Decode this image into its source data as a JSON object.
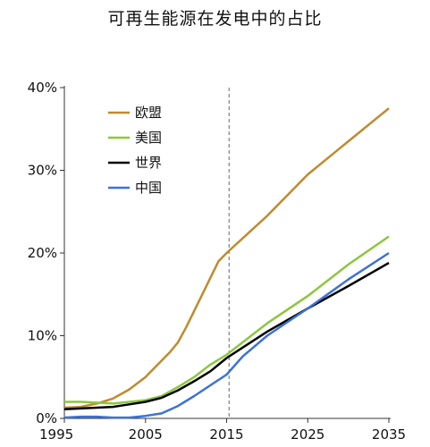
{
  "chart_data": {
    "type": "line",
    "title": "可再生能源在发电中的占比",
    "xlabel": "",
    "ylabel": "",
    "xlim": [
      1995,
      2035
    ],
    "ylim": [
      0,
      40
    ],
    "x_ticks": [
      "1995",
      "2005",
      "2015",
      "2025",
      "2035"
    ],
    "y_ticks": [
      "0%",
      "10%",
      "20%",
      "30%",
      "40%"
    ],
    "reference_line_x": 2015.3,
    "legend_position": "top-left",
    "grid": false,
    "series": [
      {
        "name": "欧盟",
        "color": "#C08A2E",
        "points": [
          [
            1995,
            1.3
          ],
          [
            1997,
            1.4
          ],
          [
            1999,
            1.8
          ],
          [
            2001,
            2.4
          ],
          [
            2003,
            3.5
          ],
          [
            2005,
            5.0
          ],
          [
            2006,
            6.0
          ],
          [
            2007,
            7.0
          ],
          [
            2008,
            8.0
          ],
          [
            2009,
            9.2
          ],
          [
            2010,
            11.0
          ],
          [
            2011,
            13.0
          ],
          [
            2012,
            15.0
          ],
          [
            2013,
            17.0
          ],
          [
            2014,
            19.0
          ],
          [
            2015,
            20.0
          ],
          [
            2020,
            24.5
          ],
          [
            2025,
            29.5
          ],
          [
            2030,
            33.5
          ],
          [
            2035,
            37.5
          ]
        ]
      },
      {
        "name": "美国",
        "color": "#8DC63F",
        "points": [
          [
            1995,
            2.0
          ],
          [
            1997,
            2.0
          ],
          [
            1999,
            1.9
          ],
          [
            2001,
            1.8
          ],
          [
            2003,
            2.0
          ],
          [
            2005,
            2.2
          ],
          [
            2007,
            2.7
          ],
          [
            2009,
            3.8
          ],
          [
            2011,
            5.0
          ],
          [
            2013,
            6.5
          ],
          [
            2015,
            7.7
          ],
          [
            2020,
            11.5
          ],
          [
            2025,
            14.8
          ],
          [
            2030,
            18.6
          ],
          [
            2035,
            22.0
          ]
        ]
      },
      {
        "name": "世界",
        "color": "#000000",
        "points": [
          [
            1995,
            1.1
          ],
          [
            1997,
            1.2
          ],
          [
            1999,
            1.3
          ],
          [
            2001,
            1.4
          ],
          [
            2003,
            1.7
          ],
          [
            2005,
            2.0
          ],
          [
            2007,
            2.5
          ],
          [
            2009,
            3.4
          ],
          [
            2011,
            4.5
          ],
          [
            2013,
            5.7
          ],
          [
            2015,
            7.3
          ],
          [
            2020,
            10.5
          ],
          [
            2025,
            13.3
          ],
          [
            2030,
            16.0
          ],
          [
            2035,
            18.8
          ]
        ]
      },
      {
        "name": "中国",
        "color": "#3C72D6",
        "points": [
          [
            1995,
            0.1
          ],
          [
            1997,
            0.2
          ],
          [
            1999,
            0.2
          ],
          [
            2001,
            0.1
          ],
          [
            2003,
            0.1
          ],
          [
            2005,
            0.3
          ],
          [
            2007,
            0.6
          ],
          [
            2009,
            1.5
          ],
          [
            2011,
            2.7
          ],
          [
            2013,
            4.0
          ],
          [
            2015,
            5.3
          ],
          [
            2017,
            7.5
          ],
          [
            2020,
            10.0
          ],
          [
            2025,
            13.3
          ],
          [
            2030,
            16.8
          ],
          [
            2035,
            20.0
          ]
        ]
      }
    ]
  }
}
